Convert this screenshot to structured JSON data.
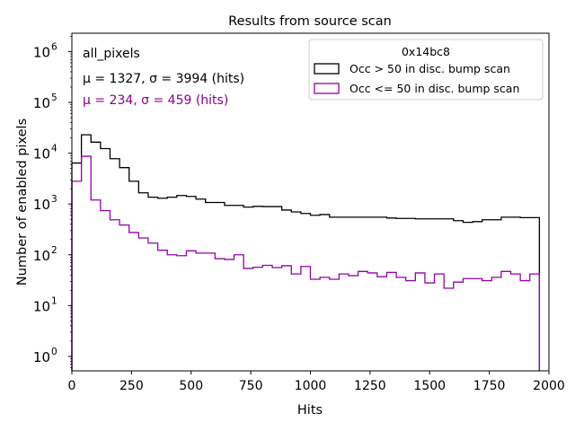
{
  "chart_data": {
    "type": "step-histogram",
    "title": "Results from source scan",
    "xlabel": "Hits",
    "ylabel": "Number of enabled pixels",
    "xlim": [
      0,
      2000
    ],
    "ylim": [
      0.52,
      2300000
    ],
    "yscale": "log",
    "xticks": [
      0,
      250,
      500,
      750,
      1000,
      1250,
      1500,
      1750,
      2000
    ],
    "xtick_labels": [
      "0",
      "250",
      "500",
      "750",
      "1000",
      "1250",
      "1500",
      "1750",
      "2000"
    ],
    "yticks_exp": [
      0,
      1,
      2,
      3,
      4,
      5,
      6
    ],
    "grid": false,
    "bin_width": 40,
    "bin_start": 0,
    "annotations": [
      {
        "text": "all_pixels",
        "color": "#000000"
      },
      {
        "text": "μ = 1327, σ = 3994 (hits)",
        "color": "#000000"
      },
      {
        "text": "μ = 234, σ = 459 (hits)",
        "color": "#8b008b"
      }
    ],
    "legend": {
      "title": "0x14bc8",
      "placement": "top-right"
    },
    "series": [
      {
        "name": "Occ > 50 in disc. bump scan",
        "color": "#000000",
        "values": [
          6400,
          23000,
          16500,
          12300,
          7800,
          5200,
          2800,
          1660,
          1360,
          1300,
          1360,
          1470,
          1410,
          1250,
          1070,
          1070,
          940,
          940,
          870,
          900,
          890,
          890,
          760,
          700,
          650,
          600,
          620,
          550,
          550,
          550,
          550,
          550,
          550,
          530,
          520,
          520,
          510,
          510,
          510,
          510,
          470,
          435,
          450,
          490,
          490,
          550,
          550,
          540,
          540
        ]
      },
      {
        "name": "Occ <= 50 in disc. bump scan",
        "color": "#9400a8",
        "values": [
          2800,
          8700,
          1200,
          740,
          490,
          385,
          275,
          215,
          170,
          123,
          100,
          96,
          120,
          108,
          108,
          84,
          81,
          100,
          54,
          57,
          62,
          56,
          61,
          42,
          59,
          33,
          36,
          33,
          42,
          39,
          47,
          44,
          37,
          45,
          36,
          31,
          44,
          28,
          42,
          22,
          29,
          34,
          34,
          31,
          36,
          47,
          42,
          31,
          42
        ]
      }
    ]
  }
}
